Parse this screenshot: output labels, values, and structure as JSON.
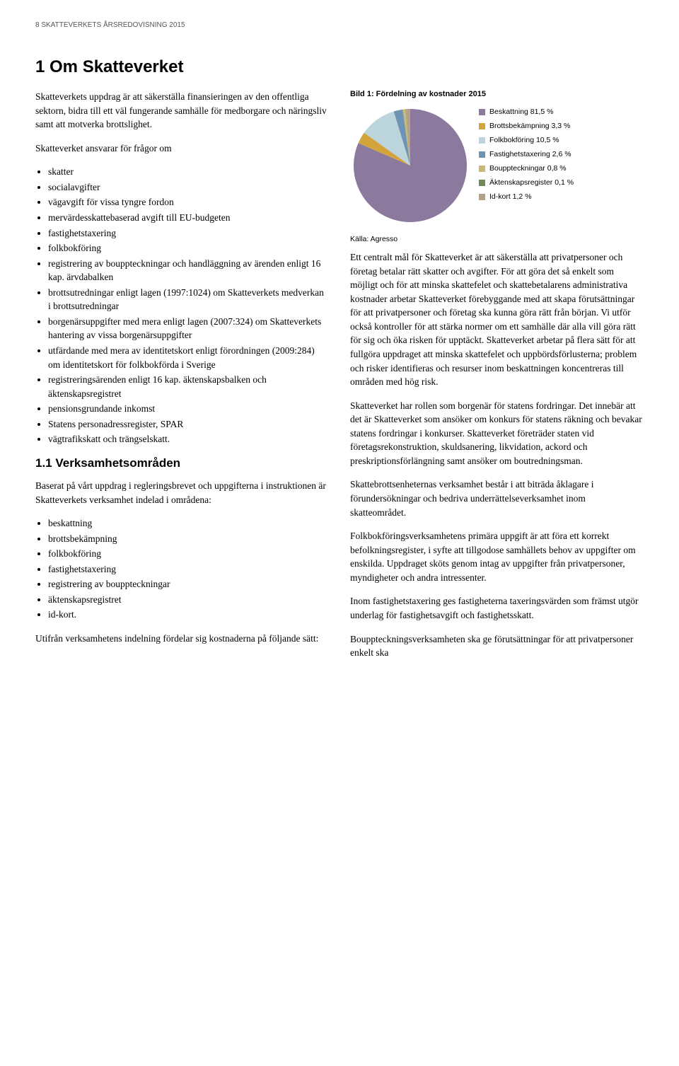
{
  "header": "8   SKATTEVERKETS ÅRSREDOVISNING 2015",
  "main_heading": "1    Om Skatteverket",
  "left": {
    "intro": "Skatteverkets uppdrag är att säkerställa finansieringen av den offentliga sektorn, bidra till ett väl fungerande samhälle för medborgare och näringsliv samt att motverka brottslighet.",
    "list_intro": "Skatteverket ansvarar för frågor om",
    "items": [
      "skatter",
      "socialavgifter",
      "vägavgift för vissa tyngre fordon",
      "mervärdesskattebaserad avgift till EU-budgeten",
      "fastighetstaxering",
      "folkbokföring",
      "registrering av bouppteckningar och handläggning av ärenden enligt 16 kap. ärvdabalken",
      "brottsutredningar enligt lagen (1997:1024) om Skatteverkets medverkan i brottsutredningar",
      "borgenärsuppgifter med mera enligt lagen (2007:324) om Skatteverkets hantering av vissa borgenärsuppgifter",
      "utfärdande med mera av identitetskort enligt förordningen (2009:284) om identitetskort för folkbokförda i Sverige",
      "registreringsärenden enligt 16 kap. äktenskapsbalken och äktenskapsregistret",
      "pensionsgrundande inkomst",
      "Statens personadressregister, SPAR",
      "vägtrafikskatt och trängselskatt."
    ],
    "subheading": "1.1    Verksamhetsområden",
    "sub_body": "Baserat på vårt uppdrag i regleringsbrevet och uppgifterna i instruktionen är Skatteverkets verksamhet indelad i områdena:",
    "sub_items": [
      "beskattning",
      "brottsbekämpning",
      "folkbokföring",
      "fastighetstaxering",
      "registrering av bouppteckningar",
      "äktenskapsregistret",
      "id-kort."
    ],
    "closing": "Utifrån verksamhetens indelning fördelar sig kostnaderna på följande sätt:"
  },
  "right": {
    "chart_title": "Bild 1: Fördelning av kostnader 2015",
    "chart": {
      "type": "pie",
      "background_color": "#ffffff",
      "slices": [
        {
          "label": "Beskattning 81,5 %",
          "value": 81.5,
          "color": "#8b7a9e"
        },
        {
          "label": "Brottsbekämpning 3,3 %",
          "value": 3.3,
          "color": "#d4a43c"
        },
        {
          "label": "Folkbokföring 10,5 %",
          "value": 10.5,
          "color": "#bcd4dc"
        },
        {
          "label": "Fastighetstaxering 2,6 %",
          "value": 2.6,
          "color": "#6f93b4"
        },
        {
          "label": "Bouppteckningar 0,8 %",
          "value": 0.8,
          "color": "#c9b876"
        },
        {
          "label": "Äktenskapsregister 0,1 %",
          "value": 0.1,
          "color": "#6e8857"
        },
        {
          "label": "Id-kort 1,2 %",
          "value": 1.2,
          "color": "#b5a088"
        }
      ],
      "pie_radius": 80,
      "start_angle_deg": -90
    },
    "source": "Källa: Agresso",
    "p1": "Ett centralt mål för Skatteverket är att säkerställa att privatpersoner och företag betalar rätt skatter och avgifter. För att göra det så enkelt som möjligt och för att minska skattefelet och skattebetalarens administrativa kostnader arbetar Skatteverket förebyggande med att skapa förutsättningar för att privatpersoner och företag ska kunna göra rätt från början. Vi utför också kontroller för att stärka normer om ett samhälle där alla vill göra rätt för sig och öka risken för upptäckt. Skatteverket arbetar på flera sätt för att fullgöra uppdraget att minska skattefelet och uppbördsförlusterna; problem och risker identifieras och resurser inom beskattningen koncentreras till områden med hög risk.",
    "p2": "Skatteverket har rollen som borgenär för statens fordringar. Det innebär att det är Skatteverket som ansöker om konkurs för statens räkning och bevakar statens fordringar i konkurser. Skatteverket företräder staten vid företagsrekonstruktion, skuldsanering, likvidation, ackord och preskriptionsförlängning samt ansöker om boutredningsman.",
    "p3": "Skattebrottsenheternas verksamhet består i att biträda åklagare i förundersökningar och bedriva underrättelseverksamhet inom skatteområdet.",
    "p4": "Folkbokföringsverksamhetens primära uppgift är att föra ett korrekt befolkningsregister, i syfte att tillgodose samhällets behov av uppgifter om enskilda. Uppdraget sköts genom intag av uppgifter från privatpersoner, myndigheter och andra intressenter.",
    "p5": "Inom fastighetstaxering ges fastigheterna taxeringsvärden som främst utgör underlag för fastighetsavgift och fastighetsskatt.",
    "p6": "Bouppteckningsverksamheten ska ge förutsättningar för att privatpersoner enkelt ska"
  }
}
